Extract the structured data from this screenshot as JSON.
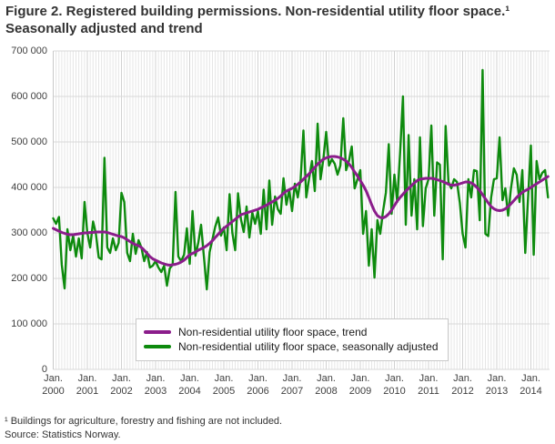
{
  "title": "Figure 2. Registered building permissions. Non-residential utility floor space.¹ Seasonally adjusted and trend",
  "footnotes": {
    "note1": "¹ Buildings for agriculture, forestry and fishing are not included.",
    "source": "Source: Statistics Norway."
  },
  "colors": {
    "trend": "#8b1d8b",
    "seasonal": "#0d8a0d",
    "grid_major": "#d8d8d8",
    "grid_minor": "#e6e6e6",
    "grid_year": "#d2d2d2",
    "axis_line": "#c9c9c9"
  },
  "legend": {
    "items": [
      {
        "label": "Non-residential utility floor space, trend",
        "series": "trend"
      },
      {
        "label": "Non-residential utility floor space,  seasonally adjusted",
        "series": "seasonal"
      }
    ]
  },
  "chart_data": {
    "type": "line",
    "title": "Figure 2. Registered building permissions. Non-residential utility floor space. Seasonally adjusted and trend",
    "xlabel": "",
    "ylabel": "",
    "ylim": [
      0,
      700000
    ],
    "grid": true,
    "legend_position": "bottom-center-inside",
    "x_frequency": "monthly",
    "x_start": "Jan. 2000",
    "x_end": "Jul. 2014",
    "y_ticks": [
      {
        "value": 0,
        "label": "0"
      },
      {
        "value": 100000,
        "label": "100 000"
      },
      {
        "value": 200000,
        "label": "200 000"
      },
      {
        "value": 300000,
        "label": "300 000"
      },
      {
        "value": 400000,
        "label": "400 000"
      },
      {
        "value": 500000,
        "label": "500 000"
      },
      {
        "value": 600000,
        "label": "600 000"
      },
      {
        "value": 700000,
        "label": "700 000"
      }
    ],
    "x_ticks": [
      {
        "month": "Jan.",
        "year": "2000"
      },
      {
        "month": "Jan.",
        "year": "2001"
      },
      {
        "month": "Jan.",
        "year": "2002"
      },
      {
        "month": "Jan.",
        "year": "2003"
      },
      {
        "month": "Jan.",
        "year": "2004"
      },
      {
        "month": "Jan.",
        "year": "2005"
      },
      {
        "month": "Jan.",
        "year": "2006"
      },
      {
        "month": "Jan.",
        "year": "2007"
      },
      {
        "month": "Jan.",
        "year": "2008"
      },
      {
        "month": "Jan.",
        "year": "2009"
      },
      {
        "month": "Jan.",
        "year": "2010"
      },
      {
        "month": "Jan.",
        "year": "2011"
      },
      {
        "month": "Jan.",
        "year": "2012"
      },
      {
        "month": "Jan.",
        "year": "2013"
      },
      {
        "month": "Jan.",
        "year": "2014"
      }
    ],
    "series": [
      {
        "name": "Non-residential utility floor space,  seasonally adjusted",
        "color_key": "seasonal",
        "stroke_width": 2.4,
        "values": [
          332000,
          320000,
          335000,
          230000,
          178000,
          308000,
          262000,
          294000,
          248000,
          288000,
          244000,
          368000,
          300000,
          268000,
          325000,
          298000,
          246000,
          242000,
          465000,
          268000,
          256000,
          288000,
          262000,
          278000,
          388000,
          368000,
          256000,
          238000,
          298000,
          254000,
          284000,
          268000,
          238000,
          258000,
          224000,
          228000,
          238000,
          224000,
          214000,
          228000,
          184000,
          222000,
          230000,
          390000,
          248000,
          238000,
          252000,
          310000,
          232000,
          348000,
          250000,
          278000,
          318000,
          248000,
          176000,
          258000,
          286000,
          314000,
          334000,
          294000,
          312000,
          262000,
          385000,
          300000,
          262000,
          387000,
          330000,
          302000,
          358000,
          290000,
          345000,
          320000,
          348000,
          298000,
          395000,
          308000,
          415000,
          318000,
          380000,
          352000,
          342000,
          420000,
          362000,
          395000,
          348000,
          408000,
          378000,
          418000,
          525000,
          378000,
          420000,
          458000,
          392000,
          540000,
          418000,
          462000,
          522000,
          448000,
          462000,
          452000,
          428000,
          448000,
          552000,
          438000,
          458000,
          490000,
          398000,
          418000,
          438000,
          298000,
          348000,
          228000,
          308000,
          202000,
          328000,
          298000,
          348000,
          388000,
          495000,
          342000,
          428000,
          368000,
          478000,
          600000,
          318000,
          515000,
          338000,
          418000,
          308000,
          510000,
          315000,
          398000,
          418000,
          536000,
          338000,
          455000,
          450000,
          242000,
          535000,
          412000,
          398000,
          418000,
          412000,
          366000,
          298000,
          268000,
          418000,
          378000,
          438000,
          436000,
          328000,
          658000,
          298000,
          293000,
          378000,
          418000,
          420000,
          510000,
          372000,
          398000,
          338000,
          398000,
          442000,
          428000,
          368000,
          438000,
          256000,
          378000,
          492000,
          252000,
          458000,
          418000,
          432000,
          438000,
          378000
        ]
      },
      {
        "name": "Non-residential utility floor space, trend",
        "color_key": "trend",
        "stroke_width": 3,
        "values": [
          310000,
          307000,
          304000,
          301000,
          299000,
          297000,
          296000,
          296000,
          297000,
          298000,
          299000,
          300000,
          300000,
          301000,
          301000,
          302000,
          302000,
          302000,
          302000,
          301000,
          299000,
          297000,
          295000,
          293000,
          292000,
          289000,
          285000,
          281000,
          277000,
          274000,
          272000,
          268000,
          262000,
          255000,
          248000,
          243000,
          240000,
          237000,
          234000,
          232000,
          230000,
          229000,
          230000,
          231000,
          233000,
          236000,
          240000,
          246000,
          252000,
          255000,
          258000,
          262000,
          265000,
          268000,
          272000,
          277000,
          283000,
          290000,
          297000,
          304000,
          310000,
          315000,
          320000,
          325000,
          330000,
          335000,
          340000,
          342000,
          344000,
          346000,
          348000,
          350000,
          352000,
          355000,
          358000,
          361000,
          365000,
          368000,
          372000,
          376000,
          381000,
          387000,
          392000,
          395000,
          398000,
          402000,
          407000,
          412000,
          418000,
          424000,
          430000,
          437000,
          444000,
          451000,
          457000,
          462000,
          465000,
          467000,
          468000,
          468000,
          467000,
          465000,
          462000,
          458000,
          452000,
          444000,
          434000,
          425000,
          415000,
          405000,
          393000,
          378000,
          362000,
          348000,
          338000,
          334000,
          333000,
          336000,
          342000,
          350000,
          360000,
          370000,
          378000,
          385000,
          392000,
          398000,
          404000,
          410000,
          415000,
          418000,
          419000,
          420000,
          420000,
          420000,
          419000,
          417000,
          415000,
          413000,
          410000,
          407000,
          405000,
          405000,
          406000,
          408000,
          410000,
          412000,
          412000,
          410000,
          406000,
          400000,
          393000,
          384000,
          375000,
          366000,
          358000,
          353000,
          350000,
          349000,
          350000,
          353000,
          358000,
          364000,
          371000,
          378000,
          384000,
          389000,
          393000,
          396000,
          400000,
          404000,
          408000,
          412000,
          416000,
          420000,
          424000
        ]
      }
    ]
  }
}
